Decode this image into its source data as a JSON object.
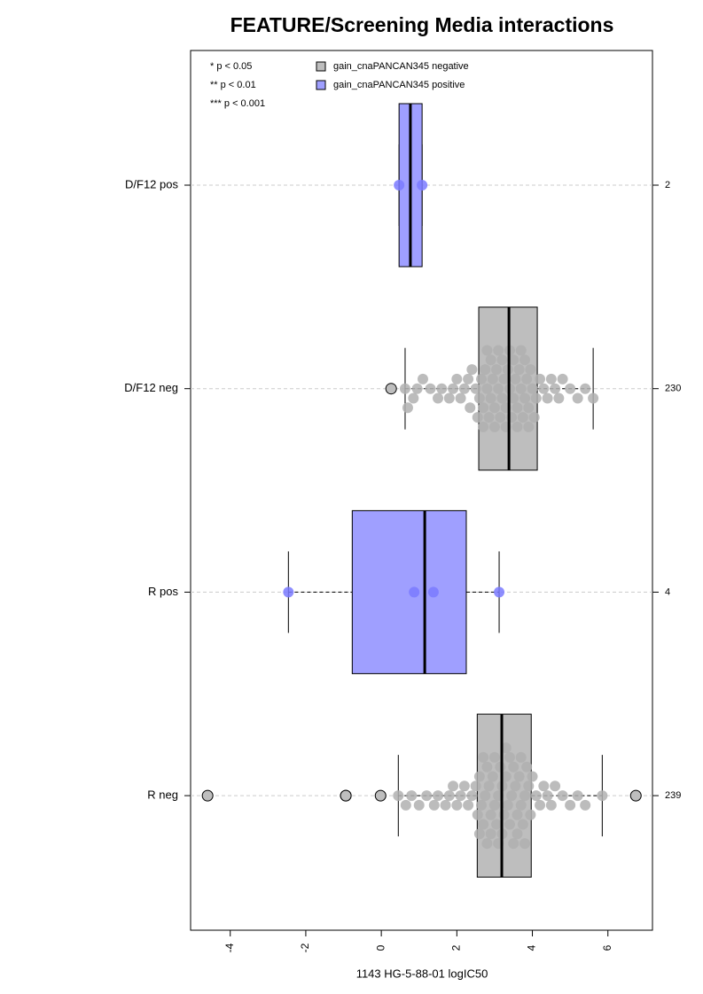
{
  "chart_data": {
    "type": "box",
    "title": "FEATURE/Screening Media interactions",
    "xlabel": "1143 HG-5-88-01 logIC50",
    "xlim": [
      -5.05,
      7.18
    ],
    "xticks": [
      -4,
      -2,
      0,
      2,
      4,
      6
    ],
    "notes": [
      "* p < 0.05",
      "** p < 0.01",
      "*** p < 0.001"
    ],
    "legend": [
      {
        "name": "gain_cnaPANCAN345 negative",
        "color": "#bebebe"
      },
      {
        "name": "gain_cnaPANCAN345 positive",
        "color": "#9f9fff"
      }
    ],
    "grid": true,
    "groups": [
      {
        "name": "D/F12 pos",
        "n": 2,
        "color": "#9f9fff",
        "point_color": "#7a7aff",
        "min": 0.47,
        "q1": 0.47,
        "median": 0.77,
        "q3": 1.08,
        "max": 1.08,
        "points": [
          0.47,
          1.08
        ]
      },
      {
        "name": "D/F12 neg",
        "n": 230,
        "color": "#bebebe",
        "point_color": "#b0b0b0",
        "min": 0.63,
        "q1": 2.58,
        "median": 3.38,
        "q3": 4.13,
        "max": 5.61,
        "outliers": [
          0.26
        ],
        "points": [
          0.63,
          0.7,
          0.85,
          0.95,
          1.1,
          1.3,
          1.5,
          1.6,
          1.8,
          1.9,
          2.0,
          2.1,
          2.2,
          2.3,
          2.35,
          2.4,
          2.5,
          2.55,
          2.6,
          2.65,
          2.7,
          2.75,
          2.8,
          2.85,
          2.9,
          2.95,
          3.0,
          3.05,
          3.1,
          3.15,
          3.2,
          3.25,
          3.3,
          3.35,
          3.4,
          3.45,
          3.5,
          3.55,
          3.6,
          3.65,
          3.7,
          3.75,
          3.8,
          3.85,
          3.9,
          3.95,
          4.0,
          4.05,
          4.1,
          4.2,
          4.3,
          4.4,
          4.5,
          4.6,
          4.7,
          4.8,
          5.0,
          5.2,
          5.4,
          5.61,
          2.7,
          2.9,
          3.1,
          3.3,
          3.5,
          3.7,
          3.9,
          2.8,
          3.0,
          3.2,
          3.4,
          3.6,
          3.8
        ]
      },
      {
        "name": "R pos",
        "n": 4,
        "color": "#9f9fff",
        "point_color": "#7a7aff",
        "min": -2.46,
        "q1": -0.77,
        "median": 1.15,
        "q3": 2.25,
        "max": 3.12,
        "points": [
          -2.46,
          0.87,
          1.38,
          3.12
        ]
      },
      {
        "name": "R neg",
        "n": 239,
        "color": "#bebebe",
        "point_color": "#b0b0b0",
        "min": 0.45,
        "q1": 2.54,
        "median": 3.19,
        "q3": 3.97,
        "max": 5.85,
        "outliers": [
          -4.6,
          -0.94,
          -0.94,
          -0.02,
          6.74
        ],
        "points": [
          0.45,
          0.65,
          0.8,
          1.0,
          1.2,
          1.4,
          1.5,
          1.7,
          1.8,
          1.9,
          2.0,
          2.1,
          2.2,
          2.3,
          2.4,
          2.5,
          2.55,
          2.6,
          2.65,
          2.7,
          2.75,
          2.8,
          2.85,
          2.9,
          2.95,
          3.0,
          3.05,
          3.1,
          3.15,
          3.2,
          3.25,
          3.3,
          3.35,
          3.4,
          3.45,
          3.5,
          3.55,
          3.6,
          3.65,
          3.7,
          3.75,
          3.8,
          3.85,
          3.9,
          3.95,
          4.0,
          4.1,
          4.2,
          4.3,
          4.4,
          4.5,
          4.6,
          4.8,
          5.0,
          5.2,
          5.4,
          5.85,
          2.6,
          2.8,
          3.0,
          3.2,
          3.4,
          3.6,
          3.8,
          2.7,
          2.9,
          3.1,
          3.3,
          3.5,
          3.7
        ]
      }
    ]
  }
}
